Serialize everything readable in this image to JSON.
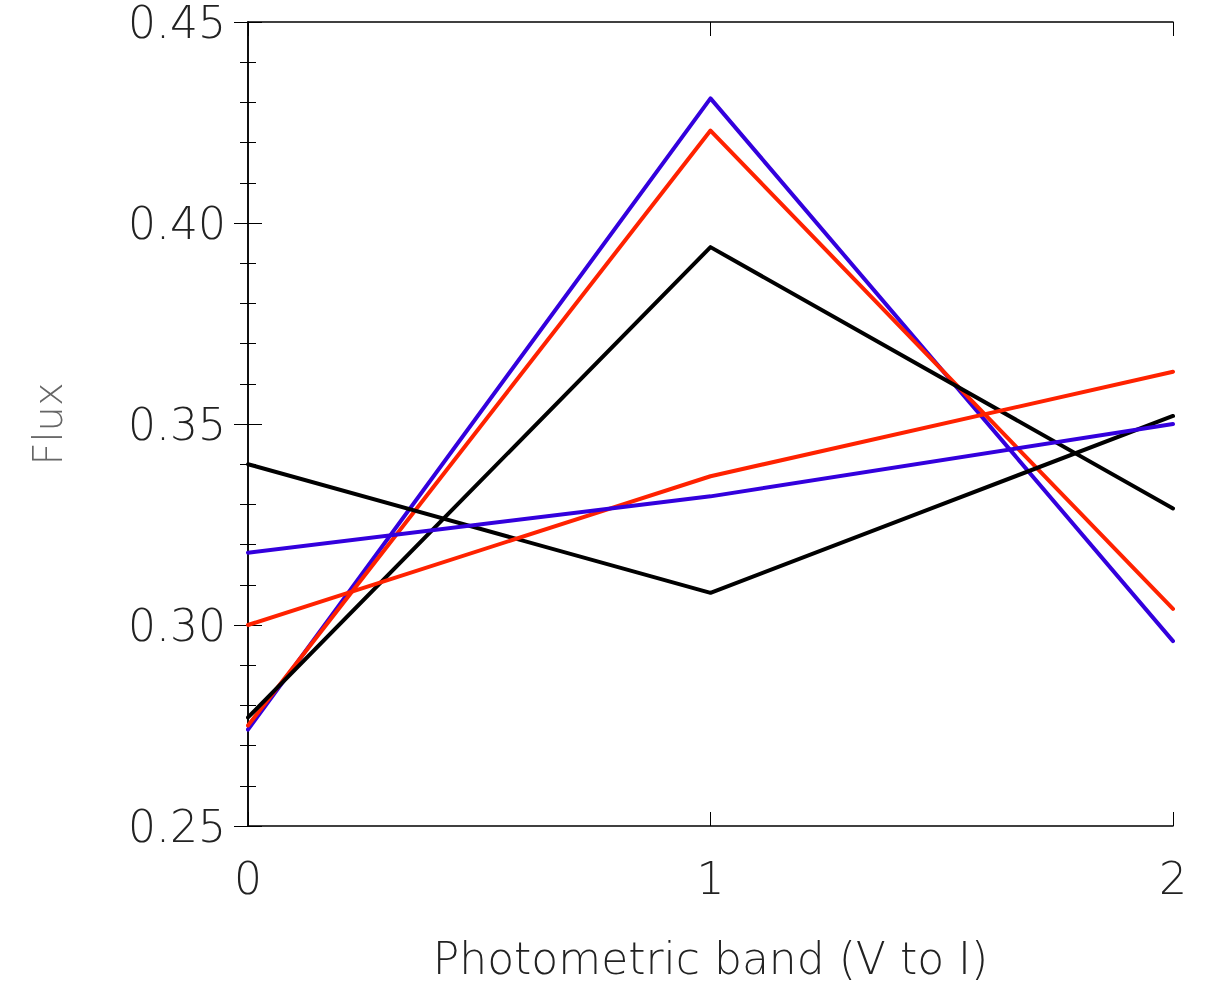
{
  "chart_data": {
    "type": "line",
    "xlabel": "Photometric band (V to I)",
    "ylabel": "Flux",
    "x": [
      0,
      1,
      2
    ],
    "series": [
      {
        "color": "#3300dd",
        "values": [
          0.274,
          0.431,
          0.296
        ]
      },
      {
        "color": "#ff2200",
        "values": [
          0.275,
          0.423,
          0.304
        ]
      },
      {
        "color": "#000000",
        "values": [
          0.277,
          0.394,
          0.329
        ]
      },
      {
        "color": "#000000",
        "values": [
          0.34,
          0.308,
          0.352
        ]
      },
      {
        "color": "#ff2200",
        "values": [
          0.3,
          0.337,
          0.363
        ]
      },
      {
        "color": "#3300dd",
        "values": [
          0.318,
          0.332,
          0.35
        ]
      }
    ],
    "xlim": [
      0,
      2
    ],
    "xticks": [
      0,
      1,
      2
    ],
    "ylim": [
      0.25,
      0.45
    ],
    "yticks": [
      {
        "value": 0.25,
        "label": "0.25"
      },
      {
        "value": 0.3,
        "label": "0.30"
      },
      {
        "value": 0.35,
        "label": "0.35"
      },
      {
        "value": 0.4,
        "label": "0.40"
      },
      {
        "value": 0.45,
        "label": "0.45"
      }
    ],
    "grid": false,
    "marker": "none",
    "line_style": "solid"
  }
}
